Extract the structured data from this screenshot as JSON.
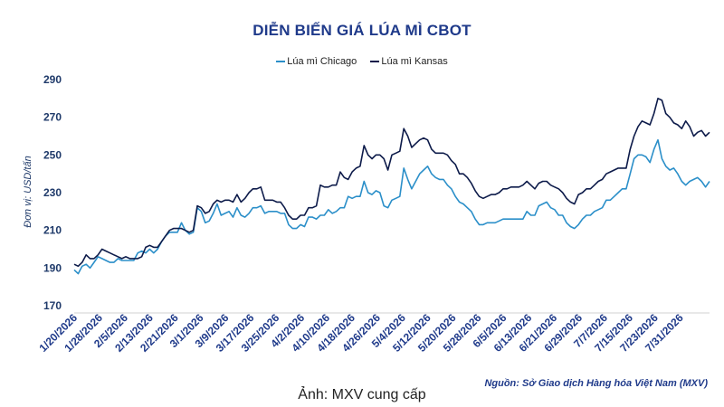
{
  "chart_data": {
    "type": "line",
    "title": "DIỄN BIẾN GIÁ LÚA MÌ CBOT",
    "ylabel": "Đơn vị: USD/tấn",
    "xlabel": "",
    "ylim": [
      170,
      290
    ],
    "yticks": [
      "170",
      "190",
      "210",
      "230",
      "250",
      "270",
      "290"
    ],
    "xtick_labels": [
      "1/20/2026",
      "1/28/2026",
      "2/5/2026",
      "2/13/2026",
      "2/21/2026",
      "3/1/2026",
      "3/9/2026",
      "3/17/2026",
      "3/25/2026",
      "4/2/2026",
      "4/10/2026",
      "4/18/2026",
      "4/26/2026",
      "5/4/2026",
      "5/12/2026",
      "5/20/2026",
      "5/28/2026",
      "6/5/2026",
      "6/13/2026",
      "6/21/2026",
      "6/29/2026",
      "7/7/2026",
      "7/15/2026",
      "7/23/2026",
      "7/31/2026"
    ],
    "grid": false,
    "legend_position": "top-center",
    "series": [
      {
        "name": "Lúa mì Chicago",
        "color": "#2b8fc9",
        "values": [
          189,
          187,
          191,
          192,
          190,
          193,
          196,
          195,
          194,
          193,
          193,
          195,
          194,
          194,
          194,
          194,
          198,
          199,
          198,
          200,
          198,
          200,
          204,
          207,
          209,
          209,
          209,
          214,
          210,
          208,
          209,
          222,
          220,
          214,
          215,
          219,
          224,
          218,
          219,
          220,
          217,
          222,
          218,
          217,
          219,
          222,
          222,
          223,
          219,
          220,
          220,
          220,
          219,
          219,
          213,
          211,
          211,
          213,
          212,
          217,
          217,
          216,
          218,
          218,
          221,
          219,
          220,
          222,
          222,
          228,
          227,
          228,
          228,
          236,
          230,
          229,
          231,
          230,
          223,
          222,
          226,
          227,
          228,
          243,
          237,
          232,
          236,
          240,
          242,
          244,
          240,
          238,
          237,
          237,
          234,
          232,
          228,
          225,
          224,
          222,
          220,
          216,
          213,
          213,
          214,
          214,
          214,
          215,
          216,
          216,
          216,
          216,
          216,
          216,
          220,
          218,
          218,
          223,
          224,
          225,
          222,
          221,
          218,
          218,
          214,
          212,
          211,
          213,
          216,
          218,
          218,
          220,
          221,
          222,
          226,
          226,
          228,
          230,
          232,
          232,
          240,
          248,
          250,
          250,
          249,
          246,
          253,
          258,
          248,
          244,
          242,
          243,
          240,
          236,
          234,
          236,
          237,
          238,
          236,
          233,
          236
        ]
      },
      {
        "name": "Lúa mì Kansas",
        "color": "#0d1b4a",
        "values": [
          192,
          191,
          193,
          197,
          195,
          195,
          197,
          200,
          199,
          198,
          197,
          196,
          195,
          196,
          195,
          195,
          195,
          196,
          201,
          202,
          201,
          201,
          204,
          207,
          210,
          211,
          211,
          211,
          210,
          209,
          210,
          223,
          222,
          219,
          220,
          224,
          226,
          225,
          226,
          226,
          225,
          229,
          225,
          227,
          230,
          232,
          232,
          233,
          226,
          226,
          226,
          225,
          225,
          222,
          218,
          216,
          216,
          218,
          218,
          222,
          222,
          223,
          234,
          233,
          233,
          234,
          234,
          241,
          238,
          237,
          241,
          243,
          244,
          255,
          250,
          248,
          250,
          250,
          248,
          242,
          250,
          251,
          252,
          264,
          260,
          254,
          256,
          258,
          259,
          258,
          253,
          251,
          251,
          251,
          250,
          247,
          245,
          240,
          240,
          238,
          235,
          231,
          228,
          227,
          228,
          229,
          229,
          230,
          232,
          232,
          233,
          233,
          233,
          234,
          236,
          234,
          232,
          235,
          236,
          236,
          234,
          233,
          232,
          230,
          227,
          225,
          224,
          229,
          230,
          232,
          232,
          234,
          236,
          237,
          240,
          241,
          242,
          243,
          243,
          243,
          253,
          260,
          265,
          268,
          267,
          266,
          272,
          280,
          279,
          272,
          270,
          267,
          266,
          264,
          268,
          265,
          260,
          262,
          263,
          260,
          262
        ]
      }
    ]
  },
  "source": "Nguồn: Sở Giao dịch Hàng hóa Việt Nam (MXV)",
  "caption": "Ảnh: MXV cung cấp"
}
